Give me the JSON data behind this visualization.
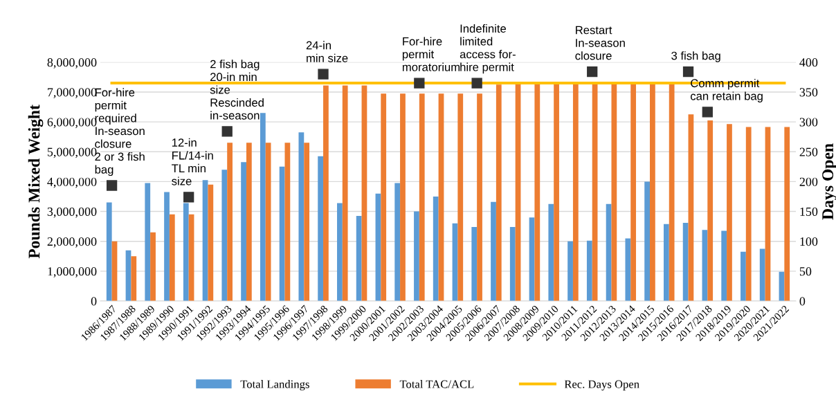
{
  "chart_data": {
    "type": "bar",
    "ylabel": "Pounds Mixed Weight",
    "y2label": "Days Open",
    "categories": [
      "1986/1987",
      "1987/1988",
      "1988/1989",
      "1989/1990",
      "1990/1991",
      "1991/1992",
      "1992/1993",
      "1993/1994",
      "1994/1995",
      "1995/1996",
      "1996/1997",
      "1997/1998",
      "1998/1999",
      "1999/2000",
      "2000/2001",
      "2001/2002",
      "2002/2003",
      "2003/2004",
      "2004/2005",
      "2005/2006",
      "2006/2007",
      "2007/2008",
      "2008/2009",
      "2009/2010",
      "2010/2011",
      "2011/2012",
      "2012/2013",
      "2013/2014",
      "2014/2015",
      "2015/2016",
      "2016/2017",
      "2017/2018",
      "2018/2019",
      "2019/2020",
      "2020/2021",
      "2021/2022"
    ],
    "series": [
      {
        "name": "Total Landings",
        "color": "#5b9bd5",
        "values": [
          3300000,
          1700000,
          3950000,
          3650000,
          3280000,
          4050000,
          4400000,
          4650000,
          6300000,
          4500000,
          5650000,
          4850000,
          3280000,
          2850000,
          3600000,
          3950000,
          3000000,
          3500000,
          2600000,
          2480000,
          3320000,
          2480000,
          2800000,
          3250000,
          2000000,
          2020000,
          3250000,
          2100000,
          4000000,
          2580000,
          2620000,
          2380000,
          2350000,
          1650000,
          1750000,
          980000
        ]
      },
      {
        "name": "Total TAC/ACL",
        "color": "#ed7d31",
        "values": [
          2000000,
          1500000,
          2300000,
          2900000,
          2900000,
          3900000,
          5300000,
          5300000,
          5300000,
          5300000,
          5300000,
          7220000,
          7220000,
          7220000,
          6950000,
          6950000,
          6950000,
          6950000,
          6950000,
          6950000,
          7250000,
          7280000,
          7280000,
          7280000,
          7280000,
          7280000,
          7280000,
          7280000,
          7280000,
          7280000,
          6250000,
          6050000,
          5930000,
          5830000,
          5830000,
          5830000
        ]
      },
      {
        "name": "Rec. Days Open",
        "type": "line",
        "axis": "y2",
        "color": "#ffc000",
        "values": [
          365,
          365,
          365,
          365,
          365,
          365,
          365,
          365,
          365,
          365,
          365,
          365,
          365,
          365,
          365,
          365,
          365,
          365,
          365,
          365,
          365,
          365,
          365,
          365,
          365,
          365,
          365,
          365,
          365,
          365,
          365,
          365,
          365,
          365,
          365,
          365
        ]
      }
    ],
    "ylim": [
      0,
      8000000
    ],
    "yticks": [
      {
        "value": 0,
        "label": "0"
      },
      {
        "value": 1000000,
        "label": "1,000,000"
      },
      {
        "value": 2000000,
        "label": "2,000,000"
      },
      {
        "value": 3000000,
        "label": "3,000,000"
      },
      {
        "value": 4000000,
        "label": "4,000,000"
      },
      {
        "value": 5000000,
        "label": "5,000,000"
      },
      {
        "value": 6000000,
        "label": "6,000,000"
      },
      {
        "value": 7000000,
        "label": "7,000,000"
      },
      {
        "value": 8000000,
        "label": "8,000,000"
      }
    ],
    "y2lim": [
      0,
      400
    ],
    "y2ticks": [
      0,
      50,
      100,
      150,
      200,
      250,
      300,
      350,
      400
    ],
    "grid": "y",
    "legend": "bottom",
    "annotations": [
      {
        "text": "For-hire\npermit\nrequired\nIn-season\nclosure\n2 or 3 fish\nbag",
        "x": "1986/1987",
        "y": 3870000
      },
      {
        "text": "12-in\nFL/14-in\nTL min\nsize",
        "x": "1990/1991",
        "y": 3480000
      },
      {
        "text": "2 fish bag\n20-in min\nsize\nRescinded\nin-season",
        "x": "1992/1993",
        "y": 5680000
      },
      {
        "text": "24-in\nmin size",
        "x": "1997/1998",
        "y": 7600000
      },
      {
        "text": "For-hire\npermit\nmoratorium",
        "x": "2002/2003",
        "y": 7300000
      },
      {
        "text": "Indefinite\nlimited\naccess for-\nhire permit",
        "x": "2005/2006",
        "y": 7300000
      },
      {
        "text": "Restart\nIn-season\nclosure",
        "x": "2011/2012",
        "y": 7680000
      },
      {
        "text": "3 fish bag",
        "x": "2016/2017",
        "y": 7680000
      },
      {
        "text": "Comm permit\ncan retain bag",
        "x": "2017/2018",
        "y": 6330000
      }
    ]
  }
}
